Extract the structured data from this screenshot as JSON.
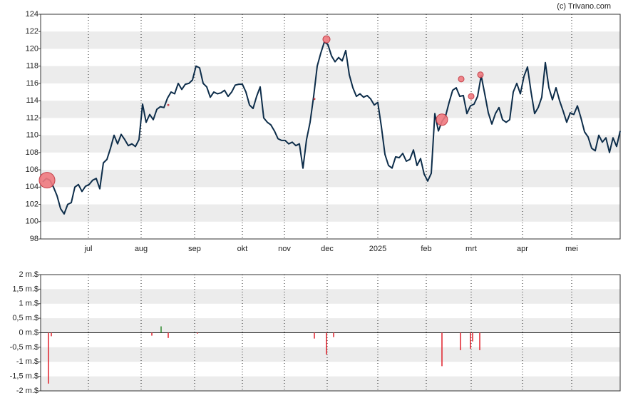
{
  "credit": "(c) Trivano.com",
  "chart_data": [
    {
      "type": "line",
      "color": "#0d2d4a",
      "values": [
        104.6,
        105,
        104.8,
        104,
        103,
        101.5,
        100.9,
        102,
        102.2,
        104,
        104.3,
        103.5,
        104.1,
        104.3,
        104.8,
        105,
        103.8,
        106.8,
        107.2,
        108.5,
        110,
        109,
        110.1,
        109.5,
        108.8,
        109,
        108.7,
        109.5,
        113.6,
        111.5,
        112.4,
        111.8,
        113,
        113.3,
        113.2,
        114.3,
        115,
        114.8,
        116,
        115.3,
        115.9,
        116,
        116.4,
        118,
        117.8,
        116,
        115.6,
        114.4,
        115,
        114.8,
        114.9,
        115.2,
        114.5,
        115,
        115.8,
        115.9,
        115.9,
        115,
        113.5,
        113.1,
        114.5,
        115.6,
        112,
        111.5,
        111.2,
        110.5,
        109.6,
        109.4,
        109.4,
        109,
        109.2,
        108.8,
        109,
        106.2,
        109.5,
        111.5,
        114.5,
        118,
        119.5,
        120.8,
        120.5,
        119.2,
        118.5,
        119,
        118.6,
        119.8,
        117,
        115.5,
        114.5,
        114.8,
        114.4,
        114.6,
        114.2,
        113.5,
        113.8,
        111,
        107.8,
        106.5,
        106.2,
        107.5,
        107.4,
        107.9,
        107,
        107.2,
        108.3,
        106.5,
        107.3,
        105.5,
        104.7,
        105.6,
        112.5,
        110.5,
        111.6,
        112.2,
        113.8,
        115.2,
        115.5,
        114.5,
        114.6,
        112.5,
        113.4,
        113.6,
        114.5,
        116.9,
        114.8,
        112.6,
        111.3,
        112.5,
        113.2,
        111.8,
        111.5,
        111.8,
        115,
        116,
        114.8,
        116.8,
        117.9,
        115,
        112.5,
        113.2,
        114.4,
        118.4,
        115.5,
        114.1,
        115.5,
        114,
        112.8,
        111.5,
        112.6,
        112.4,
        113.4,
        112,
        110.4,
        109.8,
        108.5,
        108.2,
        110,
        109.2,
        109.7,
        108,
        109.7,
        108.7,
        110.5
      ],
      "markers": {
        "color": "#f07a80",
        "x": [
          1.2,
          79.6,
          35.2,
          76.2,
          112,
          117.4,
          120.2,
          122.8
        ],
        "y": [
          104.8,
          121.1,
          113.5,
          114.2,
          111.8,
          116.5,
          114.5,
          117
        ],
        "size": [
          11,
          5,
          1,
          1,
          8,
          4,
          4,
          4
        ]
      },
      "xlim": [
        -0.6,
        162
      ],
      "ylim": [
        98,
        124
      ],
      "yticks": [
        98,
        100,
        102,
        104,
        106,
        108,
        110,
        112,
        114,
        116,
        118,
        120,
        122,
        124
      ],
      "xticks": [
        {
          "value": 12.8,
          "label": "jul"
        },
        {
          "value": 27.6,
          "label": "aug"
        },
        {
          "value": 42.6,
          "label": "sep"
        },
        {
          "value": 56,
          "label": "okt"
        },
        {
          "value": 67.8,
          "label": "nov"
        },
        {
          "value": 79.8,
          "label": "dec"
        },
        {
          "value": 94,
          "label": "2025"
        },
        {
          "value": 107.6,
          "label": "feb"
        },
        {
          "value": 120.2,
          "label": "mrt"
        },
        {
          "value": 134.6,
          "label": "apr"
        },
        {
          "value": 148.4,
          "label": "mei"
        }
      ],
      "grid": true
    },
    {
      "type": "bar",
      "positive_color": "#2e8b2e",
      "negative_color": "#e0202a",
      "x": [
        1.6,
        2.4,
        30.6,
        33.2,
        35.2,
        43.4,
        76.2,
        79.6,
        81.6,
        112,
        117.2,
        120,
        120.6,
        122.6
      ],
      "values": [
        -1.75,
        -0.12,
        -0.1,
        0.22,
        -0.18,
        -0.03,
        -0.2,
        -0.75,
        -0.15,
        -1.15,
        -0.6,
        -0.55,
        -0.3,
        -0.6
      ],
      "xlim": [
        -0.6,
        162
      ],
      "ylim": [
        -2,
        2
      ],
      "yticks": [
        {
          "value": -2,
          "label": "-2 m.$"
        },
        {
          "value": -1.5,
          "label": "-1,5 m.$"
        },
        {
          "value": -1,
          "label": "-1 m.$"
        },
        {
          "value": -0.5,
          "label": "-0,5 m.$"
        },
        {
          "value": 0,
          "label": "0 m.$"
        },
        {
          "value": 0.5,
          "label": "0,5 m.$"
        },
        {
          "value": 1,
          "label": "1 m.$"
        },
        {
          "value": 1.5,
          "label": "1,5 m.$"
        },
        {
          "value": 2,
          "label": "2 m.$"
        }
      ],
      "xticks": [
        12.8,
        27.6,
        42.6,
        56,
        67.8,
        79.8,
        94,
        107.6,
        120.2,
        134.6,
        148.4
      ],
      "grid": true
    }
  ]
}
